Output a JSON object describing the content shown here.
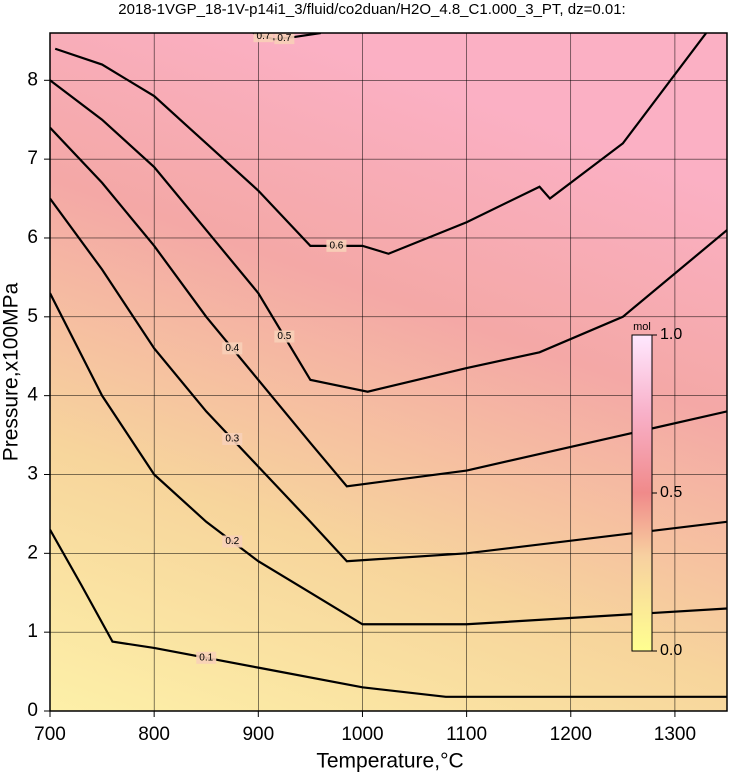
{
  "chart_data": {
    "type": "contour",
    "title": "2018-1VGP_18-1V-p14i1_3/fluid/co2duan/H2O_4.8_C1.000_3_PT, dz=0.01:",
    "xlabel": "Temperature,°C",
    "ylabel": "Pressure,x100MPa",
    "xlim": [
      700,
      1350
    ],
    "ylim": [
      0,
      8.6
    ],
    "xticks": [
      700,
      800,
      900,
      1000,
      1100,
      1200,
      1300
    ],
    "yticks": [
      0,
      1,
      2,
      3,
      4,
      5,
      6,
      7,
      8
    ],
    "grid": true,
    "colorbar": {
      "label": "mol",
      "lim": [
        0,
        1
      ],
      "ticks": [
        {
          "value": 0,
          "label": "0.0"
        },
        {
          "value": 0.5,
          "label": "0.5"
        },
        {
          "value": 1,
          "label": "1.0"
        }
      ]
    },
    "contours": [
      {
        "level": 0.1,
        "x": [
          700,
          730,
          760,
          800,
          900,
          1000,
          1080,
          1350
        ],
        "y": [
          2.3,
          1.6,
          0.88,
          0.8,
          0.55,
          0.3,
          0.18,
          0.18
        ]
      },
      {
        "level": 0.2,
        "x": [
          700,
          750,
          800,
          850,
          900,
          950,
          1000,
          1100,
          1350
        ],
        "y": [
          5.3,
          4.0,
          3.0,
          2.4,
          1.9,
          1.5,
          1.1,
          1.1,
          1.3
        ]
      },
      {
        "level": 0.3,
        "x": [
          700,
          750,
          800,
          850,
          900,
          950,
          985,
          1100,
          1350
        ],
        "y": [
          6.5,
          5.6,
          4.6,
          3.8,
          3.1,
          2.4,
          1.9,
          2.0,
          2.4
        ]
      },
      {
        "level": 0.4,
        "x": [
          700,
          750,
          800,
          850,
          900,
          950,
          985,
          1100,
          1350
        ],
        "y": [
          7.4,
          6.7,
          5.9,
          5.0,
          4.2,
          3.4,
          2.85,
          3.05,
          3.8
        ]
      },
      {
        "level": 0.5,
        "x": [
          700,
          750,
          800,
          850,
          900,
          950,
          1005,
          1100,
          1170,
          1250,
          1350
        ],
        "y": [
          8.0,
          7.5,
          6.9,
          6.1,
          5.3,
          4.2,
          4.05,
          4.35,
          4.55,
          5.0,
          6.1
        ]
      },
      {
        "level": 0.6,
        "x": [
          705,
          750,
          800,
          850,
          900,
          950,
          1000,
          1025,
          1100,
          1170,
          1180,
          1250,
          1330
        ],
        "y": [
          8.4,
          8.2,
          7.8,
          7.2,
          6.6,
          5.9,
          5.9,
          5.8,
          6.2,
          6.65,
          6.5,
          7.2,
          8.6
        ]
      },
      {
        "level": 0.7,
        "x": [
          895,
          915,
          935,
          960
        ],
        "y": [
          8.6,
          8.52,
          8.55,
          8.6
        ]
      }
    ]
  }
}
